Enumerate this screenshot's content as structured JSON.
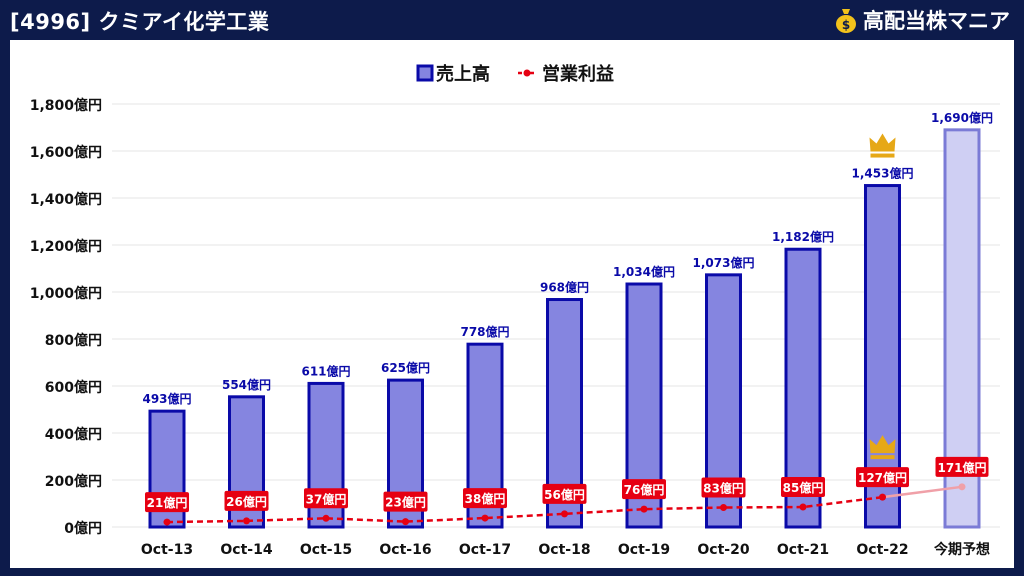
{
  "header": {
    "title": "[4996] クミアイ化学工業",
    "brand": "高配当株マニア",
    "brand_icon": "money-bag-icon"
  },
  "colors": {
    "bar_fill": "#8585e0",
    "bar_stroke": "#0a0aa8",
    "forecast_fill": "#cfcff3",
    "forecast_stroke": "#7b7bd6",
    "line": "#e60012",
    "forecast_line": "#f0a0a8",
    "crown": "#e6a817",
    "grid": "#e6e6e6",
    "revenue_label": "#0a0aa8"
  },
  "chart_data": {
    "type": "bar",
    "legend_position": "top-center",
    "grid": true,
    "ylim": [
      0,
      1800
    ],
    "y_ticks": [
      0,
      200,
      400,
      600,
      800,
      1000,
      1200,
      1400,
      1600,
      1800
    ],
    "y_tick_labels": [
      "0億円",
      "200億円",
      "400億円",
      "600億円",
      "800億円",
      "1,000億円",
      "1,200億円",
      "1,400億円",
      "1,600億円",
      "1,800億円"
    ],
    "categories": [
      "Oct-13",
      "Oct-14",
      "Oct-15",
      "Oct-16",
      "Oct-17",
      "Oct-18",
      "Oct-19",
      "Oct-20",
      "Oct-21",
      "Oct-22",
      "今期予想"
    ],
    "forecast_category": "今期予想",
    "series": [
      {
        "name": "売上高",
        "type": "bar",
        "values": [
          493,
          554,
          611,
          625,
          778,
          968,
          1034,
          1073,
          1182,
          1453,
          1690
        ],
        "labels": [
          "493億円",
          "554億円",
          "611億円",
          "625億円",
          "778億円",
          "968億円",
          "1,034億円",
          "1,073億円",
          "1,182億円",
          "1,453億円",
          "1,690億円"
        ]
      },
      {
        "name": "営業利益",
        "type": "line",
        "values": [
          21,
          26,
          37,
          23,
          38,
          56,
          76,
          83,
          85,
          127,
          171
        ],
        "labels": [
          "21億円",
          "26億円",
          "37億円",
          "23億円",
          "38億円",
          "56億円",
          "76億円",
          "83億円",
          "85億円",
          "127億円",
          "171億円"
        ]
      }
    ],
    "crowns": [
      "Oct-22"
    ]
  }
}
